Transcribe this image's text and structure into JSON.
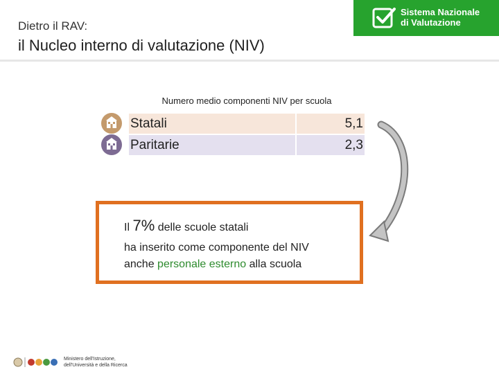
{
  "header": {
    "overline": "Dietro il RAV:",
    "title": "il Nucleo interno di valutazione (NIV)",
    "brand_line1": "Sistema Nazionale",
    "brand_line2": "di Valutazione"
  },
  "table": {
    "caption": "Numero medio componenti NIV per scuola",
    "rows": [
      {
        "label": "Statali",
        "value": "5,1",
        "icon": "school-building-icon",
        "color": "#f7e6da"
      },
      {
        "label": "Paritarie",
        "value": "2,3",
        "icon": "school-building-icon",
        "color": "#e4e0ef"
      }
    ]
  },
  "callout": {
    "prefix": "Il",
    "percentage": "7%",
    "line1_rest": "delle scuole statali",
    "line2": "ha inserito come componente del NIV",
    "line3_prefix": "anche",
    "line3_highlight": "personale esterno",
    "line3_suffix": "alla scuola",
    "border_color": "#e07020",
    "highlight_color": "#2e8b2e"
  },
  "footer": {
    "line1": "Ministero dell'Istruzione,",
    "line2": "dell'Università e della Ricerca"
  },
  "colors": {
    "brand_green": "#27a32e",
    "arrow_gray": "#a9a9a9"
  }
}
